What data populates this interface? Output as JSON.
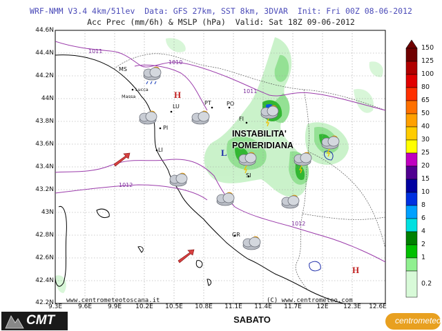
{
  "header": {
    "line1": "WRF-NMM V3.4 4km/51lev  Data: GFS 27km, SST 8km, 3DVAR  Init: Fri 00Z 08-06-2012",
    "line2": "Acc Prec (mm/6h) & MSLP (hPa)  Valid: Sat 18Z 09-06-2012"
  },
  "axes": {
    "lat_labels": [
      "44.6N",
      "44.4N",
      "44.2N",
      "44N",
      "43.8N",
      "43.6N",
      "43.4N",
      "43.2N",
      "43N",
      "42.8N",
      "42.6N",
      "42.4N",
      "42.2N"
    ],
    "lon_labels": [
      "9.3E",
      "9.6E",
      "9.9E",
      "10.2E",
      "10.5E",
      "10.8E",
      "11.1E",
      "11.4E",
      "11.7E",
      "12E",
      "12.3E",
      "12.6E"
    ]
  },
  "colorbar": {
    "labels": [
      "150",
      "125",
      "100",
      "80",
      "65",
      "50",
      "40",
      "30",
      "25",
      "20",
      "15",
      "10",
      "8",
      "6",
      "4",
      "2",
      "1",
      "0.2"
    ],
    "colors": [
      "#700000",
      "#b00000",
      "#e00000",
      "#ff3000",
      "#ff7000",
      "#ffa000",
      "#ffcc00",
      "#ffff00",
      "#c000c0",
      "#500090",
      "#0000a0",
      "#0030e0",
      "#00a0ff",
      "#00e0e0",
      "#008000",
      "#00c000",
      "#90f090",
      "#d8fad8"
    ]
  },
  "isobars": [
    "1011",
    "1010",
    "1011",
    "1012",
    "1012"
  ],
  "cities": [
    "MS",
    "Lucca",
    "Massa",
    "LU",
    "PT",
    "PO",
    "FI",
    "PI",
    "LI",
    "SI",
    "GR"
  ],
  "pressure_centers": [
    "H",
    "L",
    "H"
  ],
  "caption": {
    "line1": "INSTABILITA'",
    "line2": "POMERIDIANA"
  },
  "footer": {
    "site_left": "www.centrometeotoscana.it",
    "site_right": "(C) www.centrometeo.com",
    "day": "SABATO",
    "logo_left": "CMT",
    "logo_right": "centrometeo"
  },
  "icons": {
    "cloud": "cloud-icon",
    "sun_cloud": "partly-cloudy-icon",
    "storm": "thunderstorm-icon",
    "rain": "rain-cloud-icon",
    "wind": "wind-arrow-icon"
  }
}
